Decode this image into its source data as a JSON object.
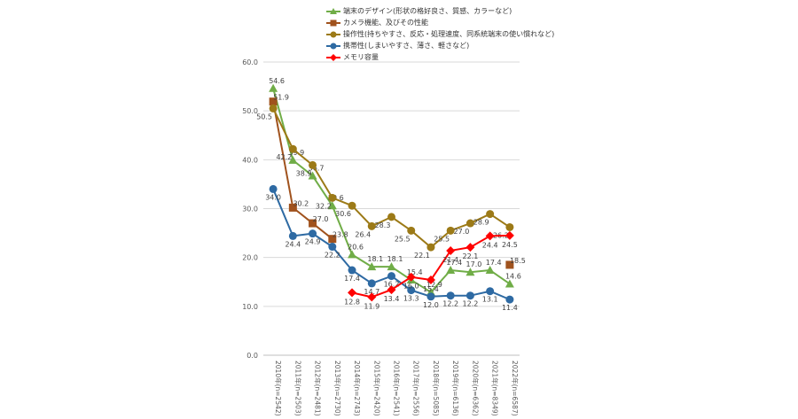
{
  "chart_data": {
    "type": "line",
    "title": "",
    "xlabel": "",
    "ylabel": "",
    "ylim": [
      0,
      60
    ],
    "yticks": [
      "0.0",
      "10.0",
      "20.0",
      "30.0",
      "40.0",
      "50.0",
      "60.0"
    ],
    "grid": "horizontal",
    "legend_position": "top",
    "categories": [
      "2010年(n=2542)",
      "2011年(n=2503)",
      "2012年(n=2481)",
      "2013年(n=2730)",
      "2014年(n=2743)",
      "2015年(n=2420)",
      "2016年(n=2541)",
      "2017年(n=2556)",
      "2018年(n=5085)",
      "2019年(n=6136)",
      "2020年(n=6362)",
      "2021年(n=8349)",
      "2022年(n=6587)"
    ],
    "series": [
      {
        "name": "端末のデザイン(形状の格好良さ、質感、カラーなど)",
        "color": "#70ad47",
        "marker": "triangle",
        "values": [
          54.6,
          39.9,
          36.7,
          30.6,
          20.6,
          18.1,
          18.1,
          15.4,
          12.9,
          17.4,
          17.0,
          17.4,
          14.6
        ],
        "labels": [
          "54.6",
          "39.9",
          "36.7",
          "30.6",
          "20.6",
          "18.1",
          "18.1",
          "15.4",
          "12.9",
          "17.4",
          "17.0",
          "17.4",
          "14.6"
        ]
      },
      {
        "name": "カメラ機能、及びその性能",
        "color": "#a0521d",
        "marker": "square",
        "values": [
          51.9,
          30.2,
          27.0,
          23.8,
          null,
          null,
          null,
          null,
          null,
          null,
          null,
          null,
          18.5
        ],
        "labels": [
          "51.9",
          "30.2",
          "27.0",
          "23.8",
          "",
          "",
          "",
          "",
          "",
          "",
          "",
          "",
          "18.5"
        ]
      },
      {
        "name": "操作性(持ちやすさ、反応・処理速度、同系統端末の使い慣れなど)",
        "color": "#9c7a17",
        "marker": "circle",
        "values": [
          50.5,
          42.2,
          38.9,
          32.2,
          30.6,
          26.4,
          28.3,
          25.5,
          22.1,
          25.5,
          27.0,
          28.9,
          26.2
        ],
        "labels": [
          "50.5",
          "42.2",
          "38.9",
          "32.2",
          "30.6",
          "26.4",
          "28.3",
          "25.5",
          "22.1",
          "25.5",
          "27.0",
          "28.9",
          "26.2"
        ]
      },
      {
        "name": "携帯性(しまいやすさ、薄さ、軽さなど)",
        "color": "#2e6aa3",
        "marker": "circle",
        "values": [
          34.0,
          24.4,
          24.9,
          22.2,
          17.4,
          14.7,
          16.2,
          13.3,
          12.0,
          12.2,
          12.2,
          13.1,
          11.4
        ],
        "labels": [
          "34.0",
          "24.4",
          "24.9",
          "22.2",
          "17.4",
          "14.7",
          "16.2",
          "13.3",
          "12.0",
          "12.2",
          "12.2",
          "13.1",
          "11.4"
        ]
      },
      {
        "name": "メモリ容量",
        "color": "#ff0000",
        "marker": "diamond",
        "values": [
          null,
          null,
          null,
          null,
          12.8,
          11.9,
          13.4,
          16.0,
          15.4,
          21.4,
          22.1,
          24.4,
          24.5
        ],
        "labels": [
          "",
          "",
          "",
          "",
          "12.8",
          "11.9",
          "13.4",
          "16.0",
          "15.4",
          "21.4",
          "22.1",
          "24.4",
          "24.5"
        ]
      }
    ]
  }
}
